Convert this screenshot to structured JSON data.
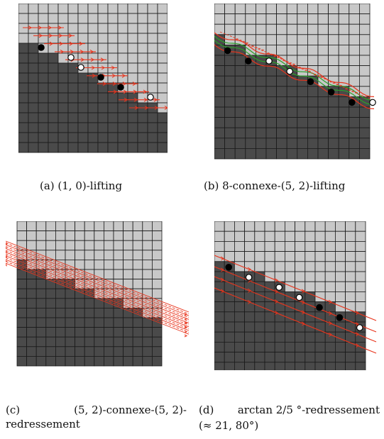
{
  "figure": {
    "grid": {
      "cols": 15,
      "rows": 15
    },
    "colors": {
      "light": "#c8c8c8",
      "dark": "#4a4a4a",
      "line": "#1a1a1a",
      "accent": "#e8341c",
      "green": "#2aa02a",
      "point_black": "#000000",
      "point_white": "#ffffff"
    },
    "panels": [
      {
        "id": "a",
        "caption": "(a) (1, 0)-lifting",
        "points": [
          [
            2,
            4,
            "b"
          ],
          [
            5,
            5,
            "w"
          ],
          [
            6,
            6,
            "w"
          ],
          [
            8,
            7,
            "b"
          ],
          [
            10,
            8,
            "b"
          ],
          [
            13,
            9,
            "w"
          ]
        ]
      },
      {
        "id": "b",
        "caption": "(b) 8-connexe-(5, 2)-lifting",
        "points": [
          [
            1,
            4,
            "b"
          ],
          [
            3,
            5,
            "b"
          ],
          [
            5,
            5,
            "w"
          ],
          [
            7,
            6,
            "w"
          ],
          [
            9,
            7,
            "b"
          ],
          [
            11,
            8,
            "b"
          ],
          [
            13,
            9,
            "b"
          ],
          [
            15,
            9,
            "w"
          ]
        ]
      },
      {
        "id": "c",
        "caption_lines": [
          "(c)",
          "(5, 2)-connexe-(5, 2)-",
          "redressement"
        ],
        "points": []
      },
      {
        "id": "d",
        "caption_lines": [
          "(d)",
          "arctan 2/5 °-redressement",
          "(≈ 21, 80°)"
        ],
        "points": [
          [
            1,
            4,
            "b"
          ],
          [
            3,
            5,
            "w"
          ],
          [
            6,
            6,
            "w"
          ],
          [
            8,
            7,
            "w"
          ],
          [
            10,
            8,
            "b"
          ],
          [
            12,
            9,
            "b"
          ],
          [
            14,
            10,
            "w"
          ]
        ]
      }
    ]
  }
}
